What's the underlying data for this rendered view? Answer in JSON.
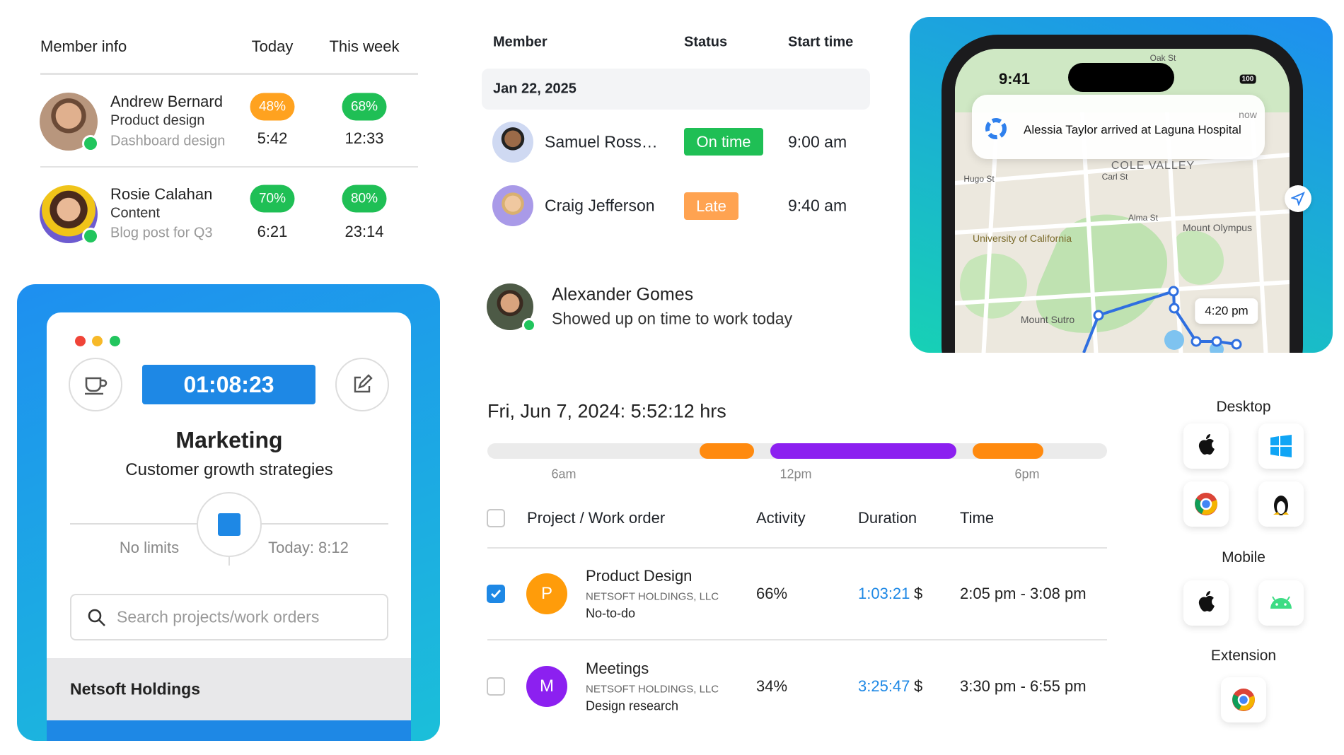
{
  "member_table": {
    "headers": [
      "Member info",
      "Today",
      "This week"
    ],
    "rows": [
      {
        "name": "Andrew Bernard",
        "role": "Product design",
        "task": "Dashboard design",
        "today_pct": "48%",
        "today_time": "5:42",
        "week_pct": "68%",
        "week_time": "12:33"
      },
      {
        "name": "Rosie Calahan",
        "role": "Content",
        "task": "Blog post for Q3",
        "today_pct": "70%",
        "today_time": "6:21",
        "week_pct": "80%",
        "week_time": "23:14"
      }
    ]
  },
  "timer_card": {
    "timer": "01:08:23",
    "project": "Marketing",
    "task": "Customer growth strategies",
    "left_label": "No limits",
    "right_label": "Today: 8:12",
    "search_placeholder": "Search projects/work orders",
    "footer": "Netsoft Holdings"
  },
  "status_table": {
    "headers": [
      "Member",
      "Status",
      "Start time"
    ],
    "date": "Jan 22, 2025",
    "rows": [
      {
        "name": "Samuel Ross…",
        "status": "On time",
        "start": "9:00 am"
      },
      {
        "name": "Craig Jefferson",
        "status": "Late",
        "start": "9:40 am"
      }
    ]
  },
  "notification": {
    "name": "Alexander Gomes",
    "message": "Showed up on time to work today"
  },
  "phone": {
    "clock": "9:41",
    "battery": "100",
    "alert": "Alessia Taylor arrived at Laguna Hospital",
    "alert_time": "now",
    "map_labels": [
      "Oak St",
      "COLE VALLEY",
      "Hugo St",
      "Carl St",
      "Alma St",
      "University of California",
      "Mount Olympus",
      "Mount Sutro"
    ],
    "eta": "4:20 pm"
  },
  "timeline": {
    "title": "Fri, Jun 7, 2024: 5:52:12 hrs",
    "ticks": [
      "6am",
      "12pm",
      "6pm"
    ]
  },
  "work_table": {
    "headers": [
      "Project / Work order",
      "Activity",
      "Duration",
      "Time"
    ],
    "rows": [
      {
        "initial": "P",
        "project": "Product Design",
        "company": "NETSOFT HOLDINGS, LLC",
        "task": "No-to-do",
        "activity": "66%",
        "duration": "1:03:21",
        "currency": "$",
        "time": "2:05 pm - 3:08 pm",
        "checked": true
      },
      {
        "initial": "M",
        "project": "Meetings",
        "company": "NETSOFT HOLDINGS, LLC",
        "task": "Design research",
        "activity": "34%",
        "duration": "3:25:47",
        "currency": "$",
        "time": "3:30 pm - 6:55 pm",
        "checked": false
      }
    ]
  },
  "platforms": {
    "desktop": "Desktop",
    "mobile": "Mobile",
    "extension": "Extension"
  }
}
